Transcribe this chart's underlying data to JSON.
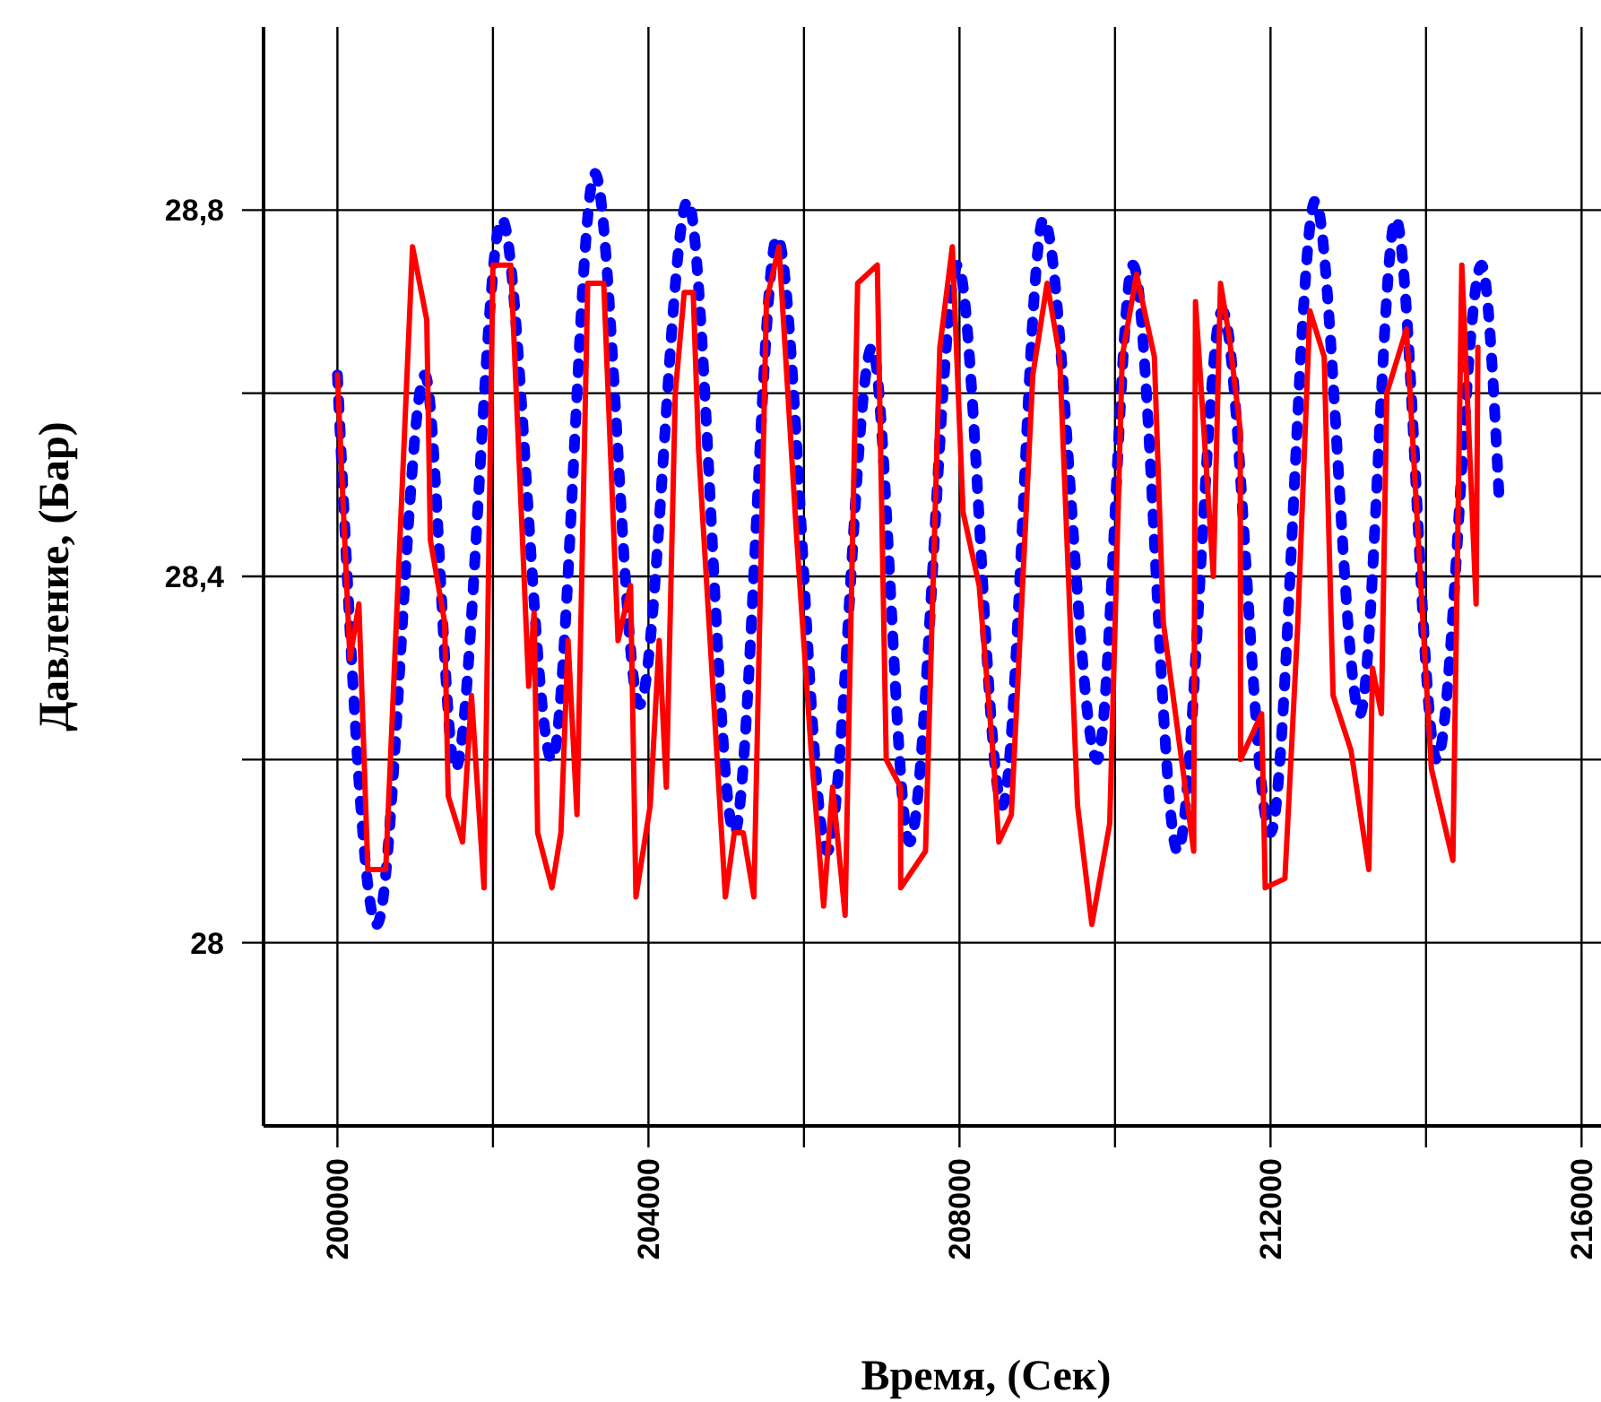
{
  "chart_data": {
    "type": "line",
    "xlabel": "Время, (Сек)",
    "ylabel": "Давление, (Бар)",
    "xlim": [
      199050,
      216250
    ],
    "ylim": [
      27.8,
      29.0
    ],
    "xticks": [
      200000,
      {
        "value": 202000,
        "label": null
      },
      204000,
      {
        "value": 206000,
        "label": null
      },
      208000,
      {
        "value": 210000,
        "label": null
      },
      212000,
      {
        "value": 214000,
        "label": null
      },
      216000
    ],
    "yticks": [
      {
        "value": 28,
        "label": "28"
      },
      {
        "value": 28.2,
        "label": null
      },
      {
        "value": 28.4,
        "label": "28,4"
      },
      {
        "value": 28.6,
        "label": null
      },
      {
        "value": 28.8,
        "label": "28,8"
      }
    ],
    "grid": true,
    "marker": "none",
    "series": [
      {
        "color": "#ff0000",
        "line_style": "solid",
        "x": [
          200000,
          200161,
          200276,
          200391,
          200621,
          200966,
          201149,
          201195,
          201379,
          201425,
          201609,
          201724,
          201885,
          202000,
          202230,
          202460,
          202529,
          202575,
          202759,
          202874,
          202966,
          203081,
          203219,
          203425,
          203609,
          203770,
          203839,
          204023,
          204138,
          204230,
          204345,
          204460,
          204575,
          204644,
          204828,
          204989,
          205104,
          205219,
          205356,
          205517,
          205678,
          205908,
          206092,
          206253,
          206368,
          206529,
          206690,
          206943,
          207058,
          207241,
          207245,
          207563,
          207747,
          207908,
          208046,
          208253,
          208437,
          208506,
          208667,
          208943,
          209127,
          209288,
          209518,
          209702,
          209932,
          210093,
          210277,
          210506,
          210621,
          211012,
          211035,
          211265,
          211357,
          211472,
          211610,
          211615,
          211886,
          211932,
          212185,
          212346,
          212506,
          212690,
          212805,
          213035,
          213265,
          213311,
          213426,
          213495,
          213748,
          214000,
          214069,
          214345,
          214460,
          214529,
          214644,
          214667
        ],
        "values": [
          28.62,
          28.31,
          28.37,
          28.08,
          28.08,
          28.76,
          28.68,
          28.44,
          28.35,
          28.16,
          28.11,
          28.27,
          28.06,
          28.74,
          28.74,
          28.28,
          28.36,
          28.12,
          28.06,
          28.12,
          28.33,
          28.14,
          28.72,
          28.72,
          28.33,
          28.39,
          28.05,
          28.15,
          28.33,
          28.17,
          28.6,
          28.71,
          28.71,
          28.54,
          28.28,
          28.05,
          28.12,
          28.12,
          28.05,
          28.7,
          28.76,
          28.44,
          28.21,
          28.04,
          28.17,
          28.03,
          28.72,
          28.74,
          28.2,
          28.17,
          28.06,
          28.1,
          28.65,
          28.76,
          28.47,
          28.39,
          28.2,
          28.11,
          28.14,
          28.62,
          28.72,
          28.64,
          28.15,
          28.02,
          28.13,
          28.64,
          28.73,
          28.64,
          28.35,
          28.1,
          28.7,
          28.4,
          28.72,
          28.66,
          28.56,
          28.2,
          28.25,
          28.06,
          28.07,
          28.34,
          28.69,
          28.64,
          28.27,
          28.21,
          28.08,
          28.3,
          28.25,
          28.6,
          28.67,
          28.29,
          28.19,
          28.09,
          28.74,
          28.6,
          28.37,
          28.65
        ]
      },
      {
        "color": "#0000ff",
        "line_style": "dotted",
        "x": [
          200000,
          200506,
          201126,
          201517,
          202115,
          202759,
          203311,
          203885,
          204506,
          205104,
          205655,
          206299,
          206874,
          207356,
          207977,
          208552,
          209081,
          209771,
          210231,
          210805,
          211380,
          212000,
          212575,
          213150,
          213610,
          214138,
          214713,
          214943
        ],
        "values": [
          28.62,
          28.02,
          28.62,
          28.19,
          28.79,
          28.2,
          28.84,
          28.26,
          28.81,
          28.12,
          28.77,
          28.1,
          28.65,
          28.11,
          28.74,
          28.15,
          28.79,
          28.2,
          28.74,
          28.1,
          28.69,
          28.12,
          28.81,
          28.25,
          28.79,
          28.2,
          28.74,
          28.48
        ]
      }
    ]
  }
}
